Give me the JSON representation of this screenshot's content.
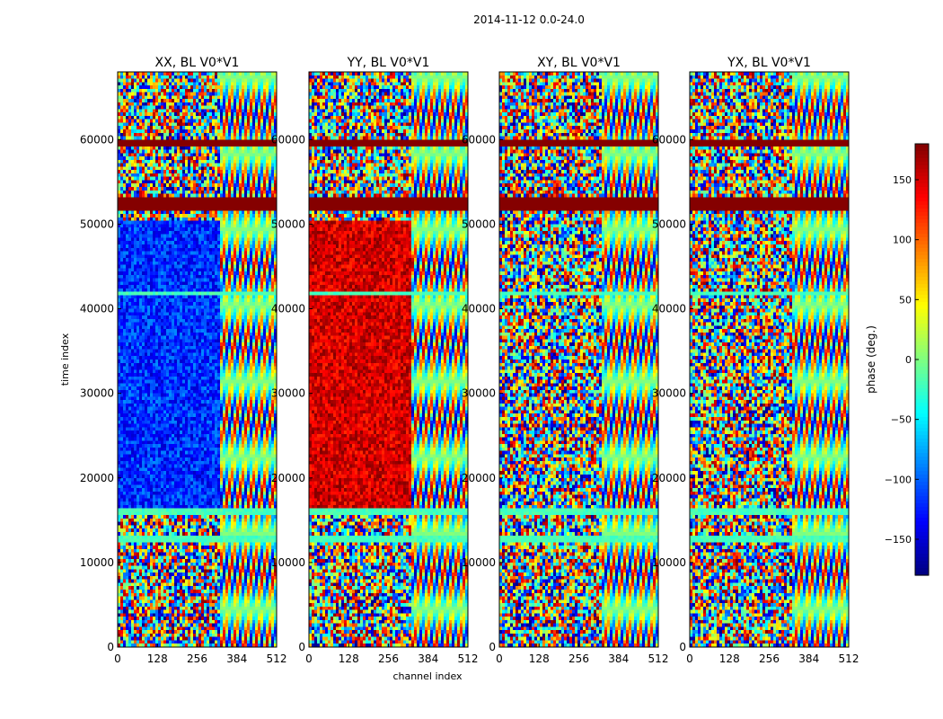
{
  "figure_title": "2014-11-12 0.0-24.0",
  "chart_data": {
    "type": "heatmap",
    "suptitle": "2014-11-12 0.0-24.0",
    "xlabel": "channel index",
    "ylabel": "time index",
    "xlim": [
      0,
      512
    ],
    "ylim": [
      0,
      68000
    ],
    "xticks": [
      "0",
      "128",
      "256",
      "384",
      "512"
    ],
    "yticks": [
      "0",
      "10000",
      "20000",
      "30000",
      "40000",
      "50000",
      "60000"
    ],
    "panels": [
      {
        "title": "XX, BL V0*V1",
        "key": "XX"
      },
      {
        "title": "YY, BL V0*V1",
        "key": "YY"
      },
      {
        "title": "XY, BL V0*V1",
        "key": "XY"
      },
      {
        "title": "YX, BL V0*V1",
        "key": "YX"
      }
    ],
    "colorbar": {
      "label": "phase (deg.)",
      "range": [
        -180,
        180
      ],
      "ticks": [
        "150",
        "100",
        "50",
        "0",
        "−50",
        "−100",
        "−150"
      ],
      "tick_values": [
        150,
        100,
        50,
        0,
        -50,
        -100,
        -150
      ],
      "colormap": "jet"
    },
    "features": {
      "saturated_bands": [
        [
          51600,
          53200
        ],
        [
          59200,
          60000
        ]
      ],
      "flagged_bands": [
        [
          12300,
          13000
        ],
        [
          41500,
          42000
        ],
        [
          15700,
          16200
        ]
      ],
      "blue_region_XX": {
        "time": [
          16500,
          50500
        ],
        "channel": [
          0,
          330
        ],
        "phase": -120
      },
      "red_region_YY": {
        "time": [
          16500,
          50500
        ],
        "channel": [
          0,
          330
        ],
        "phase": 150
      },
      "fringe_region_channel_start": 330
    }
  }
}
